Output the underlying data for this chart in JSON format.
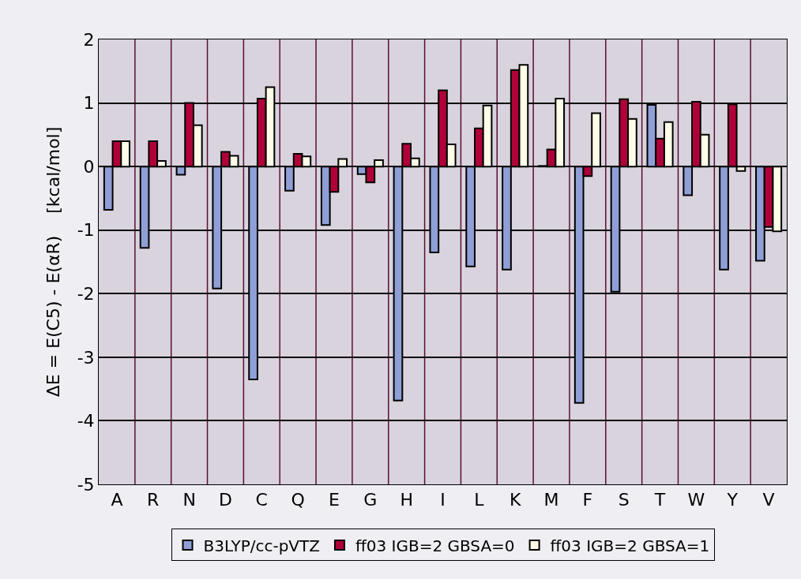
{
  "chart_data": {
    "type": "bar",
    "ylabel": "ΔE = E(C5) - E(αR)    [kcal/mol]",
    "categories": [
      "A",
      "R",
      "N",
      "D",
      "C",
      "Q",
      "E",
      "G",
      "H",
      "I",
      "L",
      "K",
      "M",
      "F",
      "S",
      "T",
      "W",
      "Y",
      "V"
    ],
    "series": [
      {
        "name": "B3LYP/cc-pVTZ",
        "color": "#8f9fd6",
        "values": [
          -0.68,
          -1.28,
          -0.13,
          -1.92,
          -3.35,
          -0.38,
          -0.92,
          -0.12,
          -3.68,
          -1.35,
          -1.57,
          -1.62,
          0.01,
          -3.72,
          -1.97,
          0.97,
          -0.45,
          -1.62,
          -1.48
        ]
      },
      {
        "name": "ff03 IGB=2 GBSA=0",
        "color": "#b0003a",
        "values": [
          0.4,
          0.4,
          1.0,
          0.23,
          1.07,
          0.2,
          -0.4,
          -0.25,
          0.36,
          1.2,
          0.6,
          1.52,
          0.27,
          -0.15,
          1.06,
          0.44,
          1.02,
          0.98,
          -0.95
        ]
      },
      {
        "name": "ff03 IGB=2 GBSA=1",
        "color": "#fffde8",
        "values": [
          0.4,
          0.09,
          0.65,
          0.17,
          1.25,
          0.16,
          0.12,
          0.1,
          0.13,
          0.35,
          0.96,
          1.6,
          1.07,
          0.84,
          0.75,
          0.7,
          0.5,
          -0.07,
          -1.02
        ]
      }
    ],
    "ylim": [
      -5,
      2
    ],
    "yticks": [
      -5,
      -4,
      -3,
      -2,
      -1,
      0,
      1,
      2
    ],
    "grid": true,
    "legend": "bottom"
  }
}
